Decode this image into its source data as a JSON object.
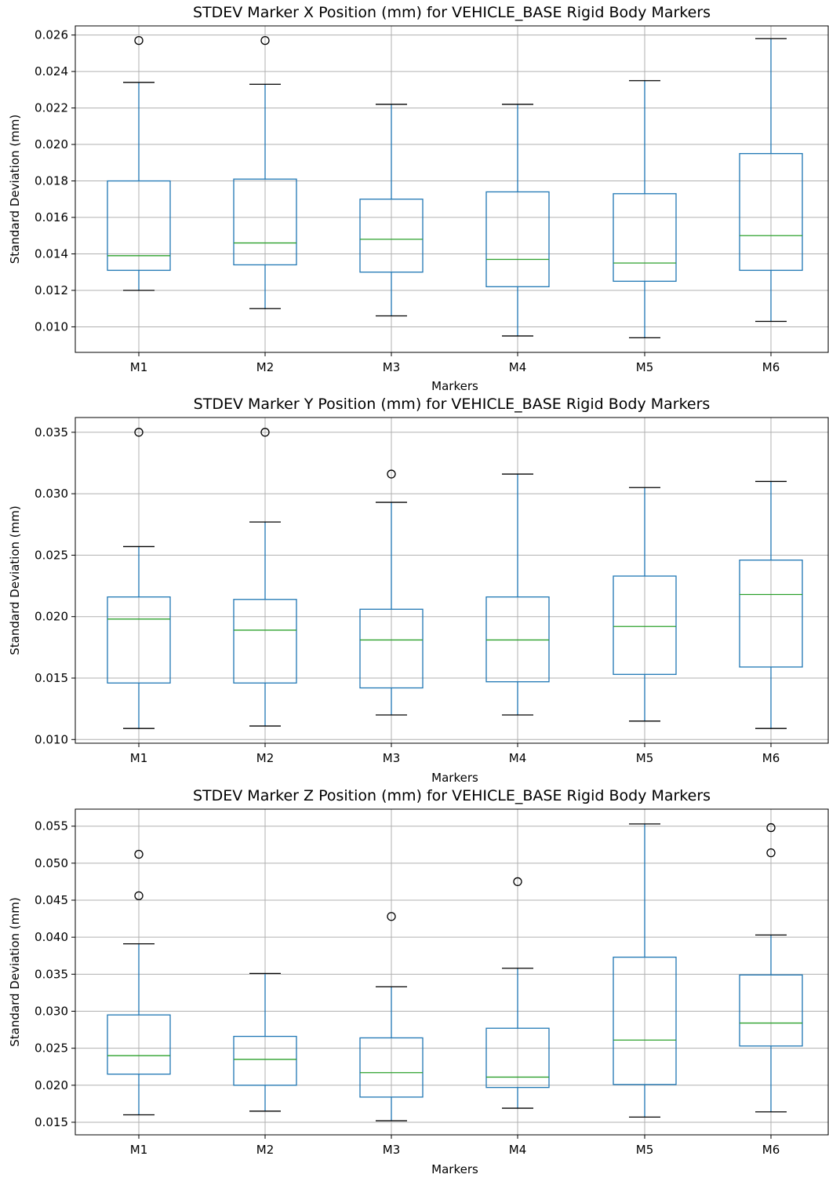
{
  "chart_data": [
    {
      "type": "box",
      "title": "STDEV Marker X Position (mm) for VEHICLE_BASE Rigid Body Markers",
      "xlabel": "Markers",
      "ylabel": "Standard Deviation (mm)",
      "categories": [
        "M1",
        "M2",
        "M3",
        "M4",
        "M5",
        "M6"
      ],
      "ylim": [
        0.0086,
        0.0265
      ],
      "yticks": [
        0.01,
        0.012,
        0.014,
        0.016,
        0.018,
        0.02,
        0.022,
        0.024,
        0.026
      ],
      "ytick_labels": [
        "0.010",
        "0.012",
        "0.014",
        "0.016",
        "0.018",
        "0.020",
        "0.022",
        "0.024",
        "0.026"
      ],
      "grid": true,
      "boxes": [
        {
          "whislo": 0.012,
          "q1": 0.0131,
          "med": 0.0139,
          "q3": 0.018,
          "whishi": 0.0234,
          "fliers": [
            0.0257
          ]
        },
        {
          "whislo": 0.011,
          "q1": 0.0134,
          "med": 0.0146,
          "q3": 0.0181,
          "whishi": 0.0233,
          "fliers": [
            0.0257
          ]
        },
        {
          "whislo": 0.0106,
          "q1": 0.013,
          "med": 0.0148,
          "q3": 0.017,
          "whishi": 0.0222,
          "fliers": []
        },
        {
          "whislo": 0.0095,
          "q1": 0.0122,
          "med": 0.0137,
          "q3": 0.0174,
          "whishi": 0.0222,
          "fliers": []
        },
        {
          "whislo": 0.0094,
          "q1": 0.0125,
          "med": 0.0135,
          "q3": 0.0173,
          "whishi": 0.0235,
          "fliers": []
        },
        {
          "whislo": 0.0103,
          "q1": 0.0131,
          "med": 0.015,
          "q3": 0.0195,
          "whishi": 0.0258,
          "fliers": []
        }
      ]
    },
    {
      "type": "box",
      "title": "STDEV Marker Y Position (mm) for VEHICLE_BASE Rigid Body Markers",
      "xlabel": "Markers",
      "ylabel": "Standard Deviation (mm)",
      "categories": [
        "M1",
        "M2",
        "M3",
        "M4",
        "M5",
        "M6"
      ],
      "ylim": [
        0.0097,
        0.0362
      ],
      "yticks": [
        0.01,
        0.015,
        0.02,
        0.025,
        0.03,
        0.035
      ],
      "ytick_labels": [
        "0.010",
        "0.015",
        "0.020",
        "0.025",
        "0.030",
        "0.035"
      ],
      "grid": true,
      "boxes": [
        {
          "whislo": 0.0109,
          "q1": 0.0146,
          "med": 0.0198,
          "q3": 0.0216,
          "whishi": 0.0257,
          "fliers": [
            0.035
          ]
        },
        {
          "whislo": 0.0111,
          "q1": 0.0146,
          "med": 0.0189,
          "q3": 0.0214,
          "whishi": 0.0277,
          "fliers": [
            0.035
          ]
        },
        {
          "whislo": 0.012,
          "q1": 0.0142,
          "med": 0.0181,
          "q3": 0.0206,
          "whishi": 0.0293,
          "fliers": [
            0.0316
          ]
        },
        {
          "whislo": 0.012,
          "q1": 0.0147,
          "med": 0.0181,
          "q3": 0.0216,
          "whishi": 0.0316,
          "fliers": []
        },
        {
          "whislo": 0.0115,
          "q1": 0.0153,
          "med": 0.0192,
          "q3": 0.0233,
          "whishi": 0.0305,
          "fliers": []
        },
        {
          "whislo": 0.0109,
          "q1": 0.0159,
          "med": 0.0218,
          "q3": 0.0246,
          "whishi": 0.031,
          "fliers": []
        }
      ]
    },
    {
      "type": "box",
      "title": "STDEV Marker Z Position (mm) for VEHICLE_BASE Rigid Body Markers",
      "xlabel": "Markers",
      "ylabel": "Standard Deviation (mm)",
      "categories": [
        "M1",
        "M2",
        "M3",
        "M4",
        "M5",
        "M6"
      ],
      "ylim": [
        0.0133,
        0.0573
      ],
      "yticks": [
        0.015,
        0.02,
        0.025,
        0.03,
        0.035,
        0.04,
        0.045,
        0.05,
        0.055
      ],
      "ytick_labels": [
        "0.015",
        "0.020",
        "0.025",
        "0.030",
        "0.035",
        "0.040",
        "0.045",
        "0.050",
        "0.055"
      ],
      "grid": true,
      "boxes": [
        {
          "whislo": 0.016,
          "q1": 0.0215,
          "med": 0.024,
          "q3": 0.0295,
          "whishi": 0.0391,
          "fliers": [
            0.0456,
            0.0512
          ]
        },
        {
          "whislo": 0.0165,
          "q1": 0.02,
          "med": 0.0235,
          "q3": 0.0266,
          "whishi": 0.0351,
          "fliers": []
        },
        {
          "whislo": 0.0152,
          "q1": 0.0184,
          "med": 0.0217,
          "q3": 0.0264,
          "whishi": 0.0333,
          "fliers": [
            0.0428
          ]
        },
        {
          "whislo": 0.0169,
          "q1": 0.0197,
          "med": 0.0211,
          "q3": 0.0277,
          "whishi": 0.0358,
          "fliers": [
            0.0475
          ]
        },
        {
          "whislo": 0.0157,
          "q1": 0.0201,
          "med": 0.0261,
          "q3": 0.0373,
          "whishi": 0.0553,
          "fliers": []
        },
        {
          "whislo": 0.0164,
          "q1": 0.0253,
          "med": 0.0284,
          "q3": 0.0349,
          "whishi": 0.0403,
          "fliers": [
            0.0514,
            0.0548
          ]
        }
      ]
    }
  ]
}
